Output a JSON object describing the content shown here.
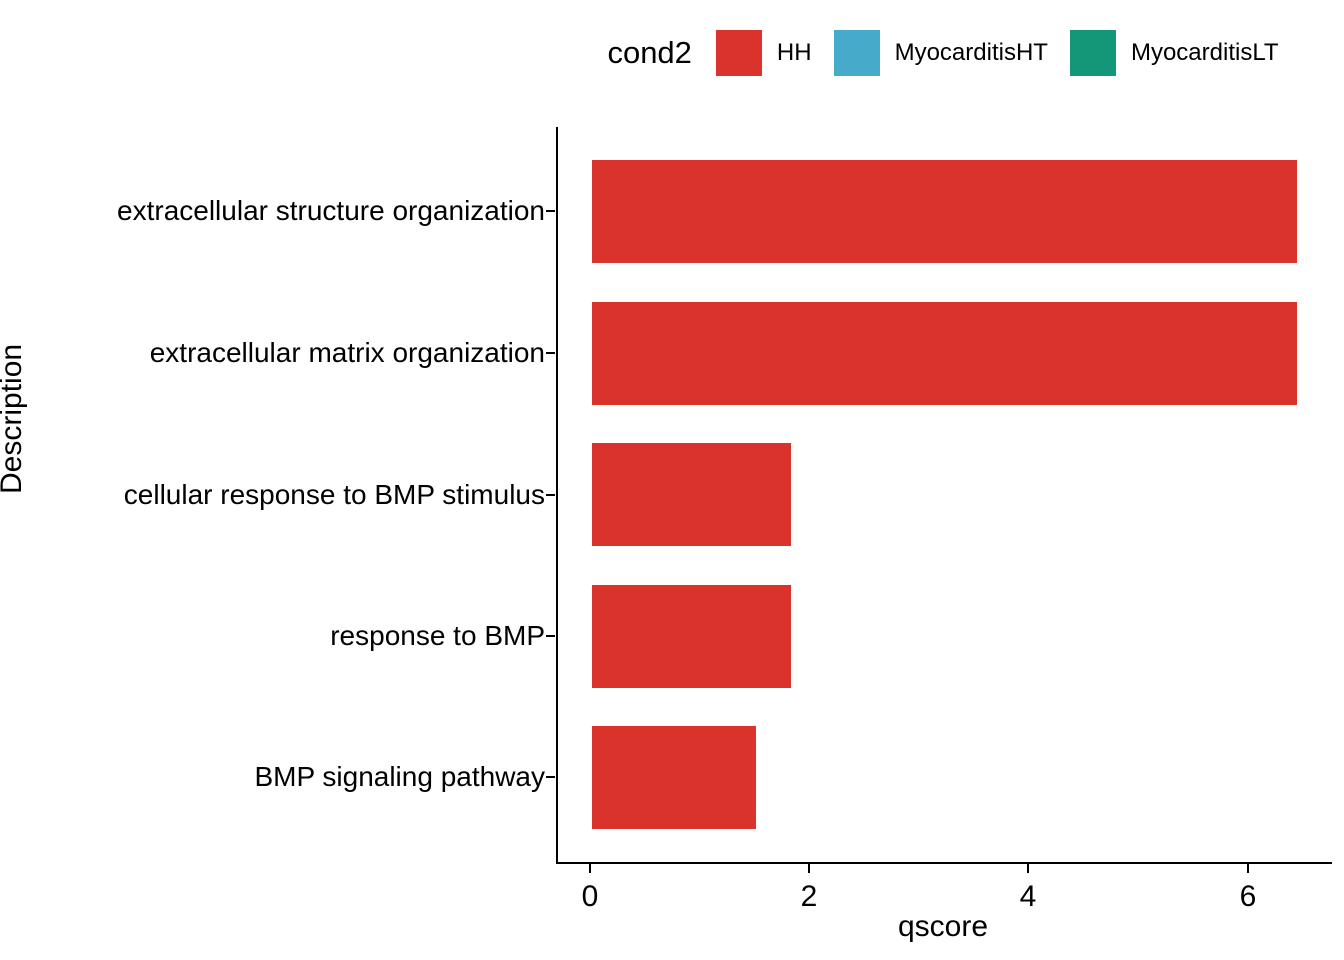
{
  "legend": {
    "title": "cond2",
    "items": [
      {
        "label": "HH",
        "color": "#DA332B"
      },
      {
        "label": "MyocarditisHT",
        "color": "#46ABCB"
      },
      {
        "label": "MyocarditisLT",
        "color": "#149678"
      }
    ]
  },
  "chart_data": {
    "type": "bar",
    "orientation": "horizontal",
    "title": "",
    "xlabel": "qscore",
    "ylabel": "Description",
    "categories": [
      "extracellular structure organization",
      "extracellular matrix organization",
      "cellular response to BMP stimulus",
      "response to BMP",
      "BMP signaling pathway"
    ],
    "series": [
      {
        "name": "HH",
        "color": "#DA332B",
        "values": [
          6.43,
          6.43,
          1.82,
          1.82,
          1.5
        ]
      }
    ],
    "xlim": [
      0,
      6.75
    ],
    "xticks": [
      0,
      2,
      4,
      6
    ],
    "grid": false,
    "legend_position": "top-center"
  }
}
